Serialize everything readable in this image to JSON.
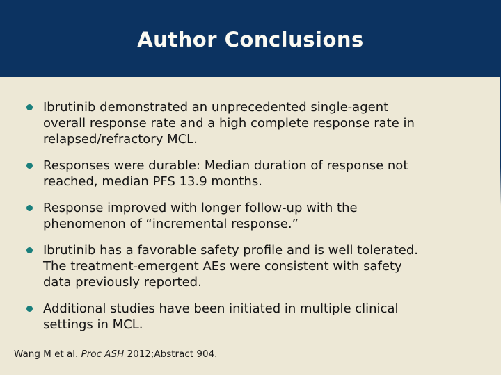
{
  "title": "Author Conclusions",
  "bullets": [
    {
      "text": "Ibrutinib demonstrated an unprecedented single-agent\noverall response rate and a high complete response rate in\nrelapsed/refractory MCL."
    },
    {
      "text": "Responses were durable: Median duration of response not\nreached, median PFS 13.9 months."
    },
    {
      "text": "Response improved with longer follow-up with the\nphenomenon of “incremental response.”"
    },
    {
      "text": "Ibrutinib has a favorable safety profile and is well tolerated.\nThe treatment-emergent AEs were consistent with safety\ndata previously reported."
    },
    {
      "text": "Additional studies have been initiated in multiple clinical\nsettings in MCL."
    }
  ],
  "citation": {
    "prefix": "Wang M et al. ",
    "italic": "Proc ASH",
    "suffix": " 2012;Abstract 904."
  },
  "colors": {
    "header_bg": "#0c3361",
    "body_bg": "#ede8d6",
    "bullet_dot": "#1a7f7c",
    "title_text": "#fbfaf2",
    "body_text": "#151515"
  }
}
